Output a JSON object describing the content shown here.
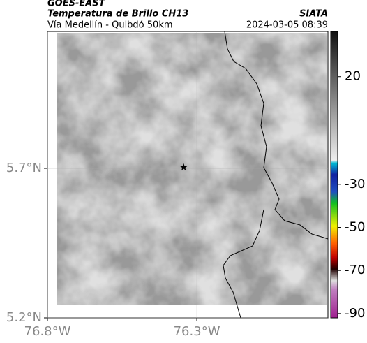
{
  "header": {
    "source": "GOES-EAST",
    "product": "Temperatura de Brillo CH13",
    "region": "Vía Medellín - Quibdó 50km",
    "agency": "SIATA",
    "timestamp": "2024-03-05 08:39"
  },
  "map": {
    "xlim": [
      -76.8,
      -75.861
    ],
    "ylim": [
      5.2,
      6.158
    ],
    "xticks": [
      {
        "value": -76.8,
        "label": "76.8°W"
      },
      {
        "value": -76.3,
        "label": "76.3°W"
      }
    ],
    "yticks": [
      {
        "value": 5.2,
        "label": "5.2°N"
      },
      {
        "value": 5.7,
        "label": "5.7°N"
      }
    ],
    "marker": {
      "lon": -76.344,
      "lat": 5.702
    }
  },
  "colorbar": {
    "lim": [
      -92,
      41
    ],
    "ticks": [
      20,
      -30,
      -50,
      -70,
      -90
    ]
  }
}
